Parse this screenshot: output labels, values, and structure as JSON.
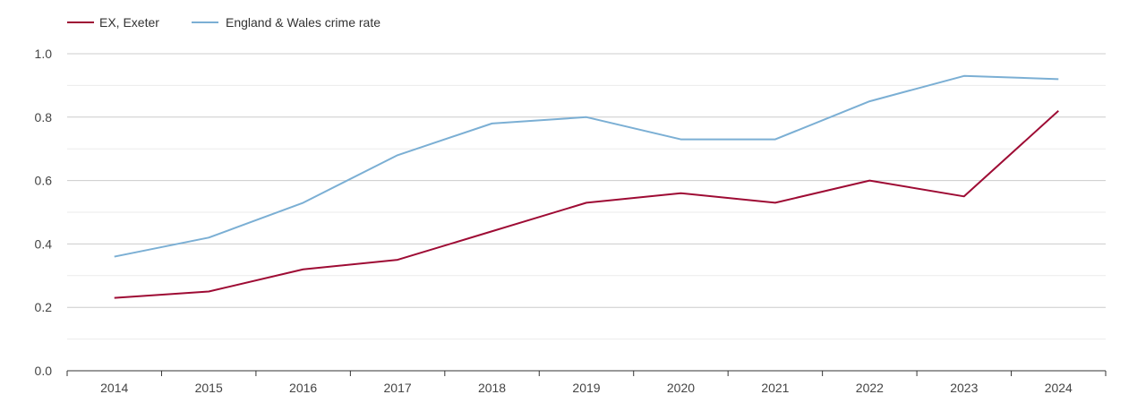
{
  "chart_data": {
    "type": "line",
    "title": "",
    "xlabel": "",
    "ylabel": "",
    "x": [
      "2014",
      "2015",
      "2016",
      "2017",
      "2018",
      "2019",
      "2020",
      "2021",
      "2022",
      "2023",
      "2024"
    ],
    "ylim": [
      0,
      1
    ],
    "yticks": [
      "0.0",
      "0.2",
      "0.4",
      "0.6",
      "0.8",
      "1.0"
    ],
    "grid": true,
    "legend_position": "top-left",
    "series": [
      {
        "name": "EX, Exeter",
        "color": "#9e0b34",
        "values": [
          0.23,
          0.25,
          0.32,
          0.35,
          0.44,
          0.53,
          0.56,
          0.53,
          0.6,
          0.55,
          0.82
        ]
      },
      {
        "name": "England & Wales crime rate",
        "color": "#7bafd4",
        "values": [
          0.36,
          0.42,
          0.53,
          0.68,
          0.78,
          0.8,
          0.73,
          0.73,
          0.85,
          0.93,
          0.92
        ]
      }
    ]
  }
}
